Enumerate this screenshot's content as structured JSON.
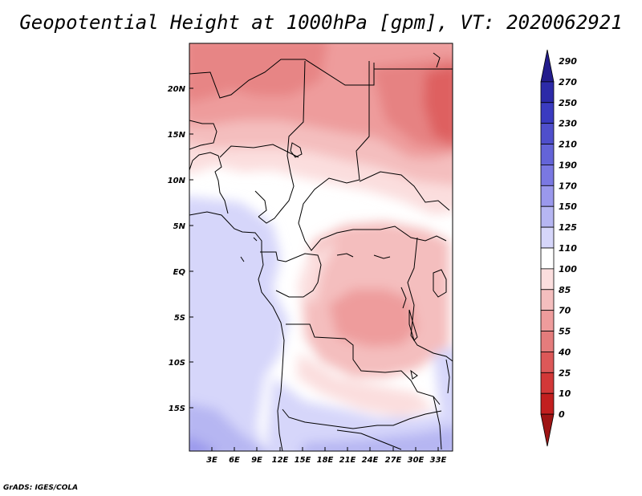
{
  "title": "Geopotential Height at 1000hPa [gpm], VT: 2020062921",
  "footer": "GrADS: IGES/COLA",
  "map": {
    "lat_labels": [
      "20N",
      "15N",
      "10N",
      "5N",
      "EQ",
      "5S",
      "10S",
      "15S"
    ],
    "lon_labels": [
      "3E",
      "6E",
      "9E",
      "12E",
      "15E",
      "18E",
      "21E",
      "24E",
      "27E",
      "30E",
      "33E"
    ]
  },
  "colorbar": {
    "levels": [
      "290",
      "270",
      "250",
      "230",
      "210",
      "190",
      "170",
      "150",
      "125",
      "110",
      "100",
      "85",
      "70",
      "55",
      "40",
      "25",
      "10",
      "0"
    ],
    "colors": [
      "#231c8c",
      "#2c2aa8",
      "#3a3bc0",
      "#4f4fcc",
      "#6464d8",
      "#7a78e2",
      "#9a98ec",
      "#b6b6f2",
      "#d6d6fa",
      "#ffffff",
      "#fbdede",
      "#f4bebe",
      "#ee9c9c",
      "#e47c7c",
      "#dc5858",
      "#d23838",
      "#c21f1f",
      "#9e1414"
    ]
  }
}
